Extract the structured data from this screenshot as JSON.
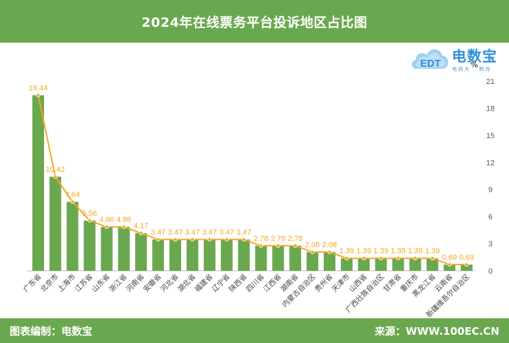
{
  "title": "2024年在线票务平台投诉地区占比图",
  "footer": {
    "left": "图表编制：电数宝",
    "right": "来源：WWW.100EC.CN"
  },
  "logo": {
    "brand": "电数宝",
    "tag_part1": "电商大",
    "tag_pct": "%",
    "tag_part2": "数库",
    "cloud_text": "EDT"
  },
  "colors": {
    "bar": "#6aa84f",
    "line": "#f5a623",
    "header": "#6aa84f",
    "label": "#f5a623"
  },
  "chart_data": {
    "type": "bar",
    "categories": [
      "广东省",
      "北京市",
      "上海市",
      "江苏省",
      "山东省",
      "浙江省",
      "河南省",
      "安徽省",
      "河北省",
      "湖北省",
      "福建省",
      "辽宁省",
      "陕西省",
      "四川省",
      "江西省",
      "湖南省",
      "内蒙古自治区",
      "贵州省",
      "天津市",
      "山西省",
      "广西壮族自治区",
      "甘肃省",
      "重庆市",
      "黑龙江省",
      "云南省",
      "新疆维吾尔自治区"
    ],
    "values": [
      19.44,
      10.42,
      7.64,
      5.56,
      4.86,
      4.86,
      4.17,
      3.47,
      3.47,
      3.47,
      3.47,
      3.47,
      3.47,
      2.78,
      2.78,
      2.78,
      2.08,
      2.08,
      1.39,
      1.39,
      1.39,
      1.39,
      1.39,
      1.39,
      0.69,
      0.69
    ],
    "labels": [
      "19.44",
      "10.42",
      "7.64",
      "5.56",
      "4.86",
      "4.86",
      "4.17",
      "3.47",
      "3.47",
      "3.47",
      "3.47",
      "3.47",
      "3.47",
      "2.78",
      "2.78",
      "2.78",
      "2.08",
      "2.08",
      "1.39",
      "1.39",
      "1.39",
      "1.39",
      "1.39",
      "1.39",
      "0.69",
      "0.69"
    ],
    "overlay_line": true,
    "yaxis_position": "right",
    "yticks": [
      0,
      3,
      6,
      9,
      12,
      15,
      18,
      21
    ],
    "ylim": [
      0,
      21
    ],
    "grid": false
  }
}
